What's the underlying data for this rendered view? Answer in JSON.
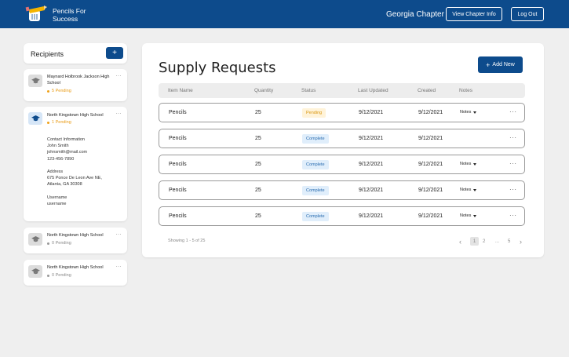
{
  "header": {
    "brand_line1": "Pencils For",
    "brand_line2": "Success",
    "chapter": "Georgia Chapter",
    "view_info_label": "View Chapter Info",
    "logout_label": "Log Out"
  },
  "sidebar": {
    "title": "Recipients",
    "add_label": "+",
    "items": [
      {
        "name": "Maynard Holbrook Jackson High School",
        "status": "5 Pending"
      },
      {
        "name": "North Kingstown High School",
        "status": "1 Pending",
        "contact_heading": "Contact Information",
        "contact_name": "John Smith",
        "contact_email": "johnsmith@mail.com",
        "contact_phone": "123-456-7890",
        "address_heading": "Address",
        "address_line1": "675 Ponce De Leon Ave NE,",
        "address_line2": "Atlanta, GA 30308",
        "username_heading": "Username",
        "username": "username"
      },
      {
        "name": "North Kingstown High School",
        "status": "0 Pending"
      },
      {
        "name": "North Kingstown High School",
        "status": "0 Pending"
      }
    ],
    "more_label": "···"
  },
  "main": {
    "title": "Supply Requests",
    "add_new_label": "Add New",
    "add_new_icon": "+",
    "columns": [
      "Item Name",
      "Quantity",
      "Status",
      "Last Updated",
      "Created",
      "Notes"
    ],
    "rows": [
      {
        "item": "Pencils",
        "quantity": "25",
        "status": "Pending",
        "updated": "9/12/2021",
        "created": "9/12/2021",
        "notes": "Notes"
      },
      {
        "item": "Pencils",
        "quantity": "25",
        "status": "Complete",
        "updated": "9/12/2021",
        "created": "9/12/2021",
        "notes": ""
      },
      {
        "item": "Pencils",
        "quantity": "25",
        "status": "Complete",
        "updated": "9/12/2021",
        "created": "9/12/2021",
        "notes": "Notes"
      },
      {
        "item": "Pencils",
        "quantity": "25",
        "status": "Complete",
        "updated": "9/12/2021",
        "created": "9/12/2021",
        "notes": "Notes"
      },
      {
        "item": "Pencils",
        "quantity": "25",
        "status": "Complete",
        "updated": "9/12/2021",
        "created": "9/12/2021",
        "notes": "Notes"
      }
    ],
    "row_more_label": "···",
    "showing": "Showing 1 - 5 of 25",
    "pagination": {
      "prev": "‹",
      "pages": [
        "1",
        "2",
        "...",
        "5"
      ],
      "next": "›",
      "current": "1"
    }
  },
  "colors": {
    "brand": "#0d4b8c",
    "pending": "#f0a21a",
    "complete_bg": "#e0eefb"
  },
  "icons": {
    "logo": "pencil-fist-logo",
    "recipient": "graduation-cap-icon",
    "notes": "caret-down-icon",
    "more": "ellipsis-icon"
  }
}
